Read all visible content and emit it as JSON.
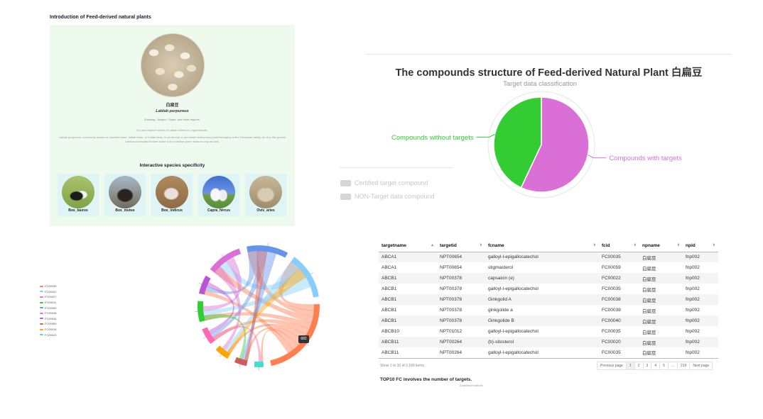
{
  "intro": {
    "title": "Introduction of Feed-derived natural plants",
    "plant_cn": "白扁豆",
    "plant_latin": "Lablab purpureus",
    "regions": "Zhejiang, Jiangsu, Fujian, and other regions.",
    "part_used": "Dry and mature seeds of Lablab dolens in Leguminosae.",
    "description": "Lablab purpureus, commonly known as hyacinth bean, lablab bean, or Indian bean, is an annual or perennial herbaceous plant belonging to the Fabaceae family. Its vine-like growth habit and beautiful flowers make it an excellent green manure crop as well.",
    "species_title": "Interactive species specificity",
    "species": [
      {
        "label": "Bos_taurus"
      },
      {
        "label": "Bos_mutus"
      },
      {
        "label": "Bos_indicus"
      },
      {
        "label": "Capra_hircus"
      },
      {
        "label": "Ovis_aries"
      }
    ]
  },
  "pie": {
    "title": "The compounds structure of Feed-derived Natural Plant 白扁豆",
    "subtitle": "Target data classification",
    "legend": [
      "Certified target compound",
      "NON-Target data compound"
    ],
    "colors": {
      "without": "#33cc33",
      "with": "#da70d6"
    },
    "chart_data": {
      "type": "pie",
      "title": "Target data classification",
      "slices": [
        {
          "label": "Compounds with targets",
          "value": 57,
          "color": "#da70d6"
        },
        {
          "label": "Compounds without targets",
          "value": 43,
          "color": "#33cc33"
        }
      ]
    }
  },
  "chord": {
    "legend": [
      "FC00035",
      "FC00022",
      "FC00027",
      "FC00011",
      "FC00050",
      "FC00048",
      "FC00044",
      "FC00059",
      "FC00018",
      "FC00043"
    ],
    "legend_colors": [
      "#ff7f50",
      "#87cefa",
      "#da70d6",
      "#32cd32",
      "#6495ed",
      "#ff69b4",
      "#ba55d3",
      "#cd5c5c",
      "#ffa500",
      "#40e0d0"
    ],
    "tooltip": "682"
  },
  "table": {
    "columns": [
      "targetname",
      "targetid",
      "fcname",
      "fcid",
      "npname",
      "npid"
    ],
    "rows": [
      [
        "ABCA1",
        "NPT00654",
        "galloyl-l-epigallocatechol",
        "FC00035",
        "白扁豆",
        "fnp002"
      ],
      [
        "ABCA1",
        "NPT00654",
        "stigmasterol",
        "FC00059",
        "白扁豆",
        "fnp002"
      ],
      [
        "ABCB1",
        "NPT00378",
        "capsaicin (e)",
        "FC00022",
        "白扁豆",
        "fnp002"
      ],
      [
        "ABCB1",
        "NPT00378",
        "galloyl-l-epigallocatechol",
        "FC00035",
        "白扁豆",
        "fnp002"
      ],
      [
        "ABCB1",
        "NPT00378",
        "Ginkgolid A",
        "FC00038",
        "白扁豆",
        "fnp002"
      ],
      [
        "ABCB1",
        "NPT00378",
        "ginkgolide a",
        "FC00039",
        "白扁豆",
        "fnp002"
      ],
      [
        "ABCB1",
        "NPT00378",
        "Ginkgolide B",
        "FC00040",
        "白扁豆",
        "fnp002"
      ],
      [
        "ABCB10",
        "NPT01012",
        "galloyl-l-epigallocatechol",
        "FC00035",
        "白扁豆",
        "fnp002"
      ],
      [
        "ABCB11",
        "NPT00264",
        "(b)-sitosterol",
        "FC00020",
        "白扁豆",
        "fnp002"
      ],
      [
        "ABCB11",
        "NPT00264",
        "galloyl-l-epigallocatechol",
        "FC00035",
        "白扁豆",
        "fnp002"
      ]
    ],
    "info": "Show 1 to 10 of 2,189 items.",
    "pager": [
      "Previous page",
      "1",
      "2",
      "3",
      "4",
      "5",
      "...",
      "219",
      "Next page"
    ],
    "top10_title": "TOP10 FC involves the number of targets.",
    "top10_sub": "Quantitative statistics"
  }
}
